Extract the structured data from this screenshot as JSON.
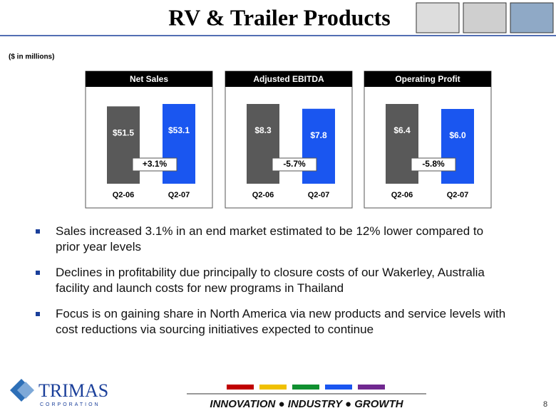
{
  "header": {
    "title": "RV & Trailer Products"
  },
  "note": "($ in millions)",
  "chart_data": [
    {
      "type": "bar",
      "title": "Net Sales",
      "categories": [
        "Q2-06",
        "Q2-07"
      ],
      "values": [
        51.5,
        53.1
      ],
      "value_labels": [
        "$51.5",
        "$53.1"
      ],
      "colors": [
        "#595959",
        "#1a56f0"
      ],
      "annotation": "+3.1%"
    },
    {
      "type": "bar",
      "title": "Adjusted EBITDA",
      "categories": [
        "Q2-06",
        "Q2-07"
      ],
      "values": [
        8.3,
        7.8
      ],
      "value_labels": [
        "$8.3",
        "$7.8"
      ],
      "colors": [
        "#595959",
        "#1a56f0"
      ],
      "annotation": "-5.7%"
    },
    {
      "type": "bar",
      "title": "Operating Profit",
      "categories": [
        "Q2-06",
        "Q2-07"
      ],
      "values": [
        6.4,
        6.0
      ],
      "value_labels": [
        "$6.4",
        "$6.0"
      ],
      "colors": [
        "#595959",
        "#1a56f0"
      ],
      "annotation": "-5.8%"
    }
  ],
  "bullets": [
    "Sales increased 3.1% in an end market estimated to be 12% lower compared to prior year levels",
    "Declines in profitability due principally to closure costs of our Wakerley, Australia facility and launch costs for new programs in Thailand",
    "Focus is on gaining share in North America via new products and service levels with cost reductions via sourcing initiatives expected to continue"
  ],
  "footer": {
    "logo": "TRIMAS",
    "logo_sub": "CORPORATION",
    "tagline": "INNOVATION ● INDUSTRY ● GROWTH",
    "page_number": "8"
  }
}
